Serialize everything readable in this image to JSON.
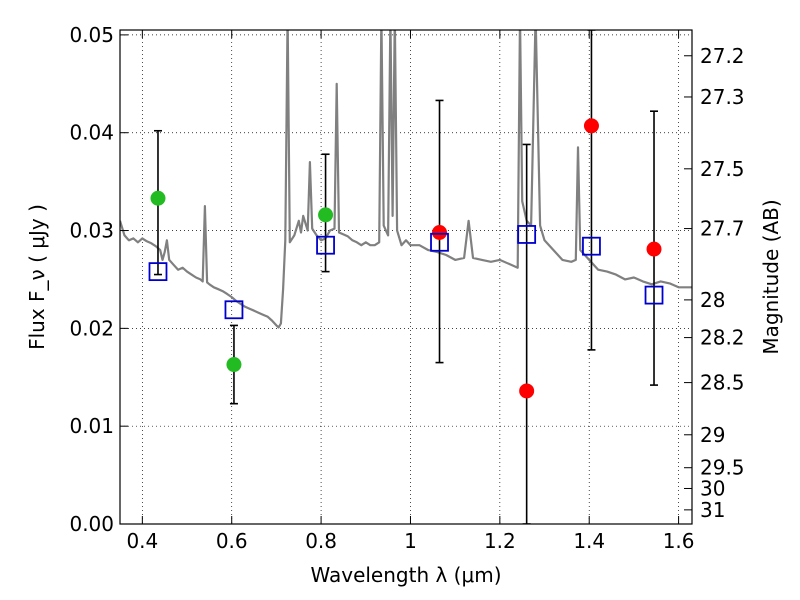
{
  "chart_data": {
    "type": "scatter",
    "title": "",
    "xlabel": "Wavelength  λ (μm)",
    "ylabel": "Flux  F_ν  ( μJy )",
    "y2label": "Magnitude (AB)",
    "xlim": [
      0.35,
      1.63
    ],
    "ylim": [
      0.0,
      0.0505
    ],
    "grid": true,
    "x_ticks": [
      0.4,
      0.6,
      0.8,
      1.0,
      1.2,
      1.4,
      1.6
    ],
    "x_tick_labels": [
      "0.4",
      "0.6",
      "0.8",
      "1",
      "1.2",
      "1.4",
      "1.6"
    ],
    "y_ticks": [
      0.0,
      0.01,
      0.02,
      0.03,
      0.04,
      0.05
    ],
    "y_tick_labels": [
      "0.00",
      "0.01",
      "0.02",
      "0.03",
      "0.04",
      "0.05"
    ],
    "y2_ticks": [
      27.2,
      27.3,
      27.5,
      27.7,
      28,
      28.2,
      28.5,
      29,
      29.5,
      30,
      31
    ],
    "y2_tick_labels": [
      "27.2",
      "27.3",
      "27.5",
      "27.7",
      "28",
      "28.2",
      "28.5",
      "29",
      "29.5",
      "30",
      "31"
    ],
    "series": [
      {
        "kind": "line",
        "color": "#808080",
        "points": [
          [
            0.35,
            0.031
          ],
          [
            0.36,
            0.0295
          ],
          [
            0.37,
            0.029
          ],
          [
            0.38,
            0.0292
          ],
          [
            0.39,
            0.0288
          ],
          [
            0.4,
            0.0292
          ],
          [
            0.41,
            0.0289
          ],
          [
            0.42,
            0.0287
          ],
          [
            0.43,
            0.0284
          ],
          [
            0.44,
            0.028
          ],
          [
            0.445,
            0.027
          ],
          [
            0.45,
            0.0278
          ],
          [
            0.455,
            0.029
          ],
          [
            0.46,
            0.027
          ],
          [
            0.47,
            0.0265
          ],
          [
            0.48,
            0.026
          ],
          [
            0.49,
            0.0262
          ],
          [
            0.5,
            0.0258
          ],
          [
            0.51,
            0.0255
          ],
          [
            0.52,
            0.0252
          ],
          [
            0.53,
            0.025
          ],
          [
            0.535,
            0.0248
          ],
          [
            0.54,
            0.0325
          ],
          [
            0.545,
            0.0247
          ],
          [
            0.55,
            0.0245
          ],
          [
            0.56,
            0.0242
          ],
          [
            0.57,
            0.024
          ],
          [
            0.58,
            0.0238
          ],
          [
            0.59,
            0.0235
          ],
          [
            0.6,
            0.0232
          ],
          [
            0.61,
            0.0228
          ],
          [
            0.62,
            0.0225
          ],
          [
            0.63,
            0.0222
          ],
          [
            0.64,
            0.022
          ],
          [
            0.65,
            0.0218
          ],
          [
            0.66,
            0.0216
          ],
          [
            0.67,
            0.0214
          ],
          [
            0.68,
            0.0212
          ],
          [
            0.69,
            0.0208
          ],
          [
            0.7,
            0.0203
          ],
          [
            0.705,
            0.0201
          ],
          [
            0.71,
            0.0205
          ],
          [
            0.715,
            0.024
          ],
          [
            0.72,
            0.029
          ],
          [
            0.725,
            0.052
          ],
          [
            0.73,
            0.0288
          ],
          [
            0.74,
            0.0295
          ],
          [
            0.75,
            0.031
          ],
          [
            0.755,
            0.0298
          ],
          [
            0.76,
            0.0315
          ],
          [
            0.77,
            0.03
          ],
          [
            0.775,
            0.037
          ],
          [
            0.78,
            0.0302
          ],
          [
            0.79,
            0.0295
          ],
          [
            0.8,
            0.029
          ],
          [
            0.81,
            0.0292
          ],
          [
            0.82,
            0.03
          ],
          [
            0.83,
            0.0302
          ],
          [
            0.835,
            0.045
          ],
          [
            0.84,
            0.0298
          ],
          [
            0.85,
            0.0296
          ],
          [
            0.86,
            0.0294
          ],
          [
            0.87,
            0.029
          ],
          [
            0.88,
            0.0288
          ],
          [
            0.89,
            0.0285
          ],
          [
            0.9,
            0.0288
          ],
          [
            0.91,
            0.0285
          ],
          [
            0.92,
            0.0285
          ],
          [
            0.93,
            0.0288
          ],
          [
            0.935,
            0.052
          ],
          [
            0.94,
            0.0305
          ],
          [
            0.95,
            0.0295
          ],
          [
            0.955,
            0.052
          ],
          [
            0.96,
            0.0315
          ],
          [
            0.965,
            0.052
          ],
          [
            0.97,
            0.03
          ],
          [
            0.98,
            0.0285
          ],
          [
            0.99,
            0.029
          ],
          [
            1.0,
            0.0285
          ],
          [
            1.02,
            0.0285
          ],
          [
            1.04,
            0.028
          ],
          [
            1.06,
            0.0278
          ],
          [
            1.08,
            0.0275
          ],
          [
            1.1,
            0.027
          ],
          [
            1.12,
            0.0272
          ],
          [
            1.13,
            0.031
          ],
          [
            1.14,
            0.0272
          ],
          [
            1.16,
            0.027
          ],
          [
            1.18,
            0.0268
          ],
          [
            1.2,
            0.027
          ],
          [
            1.22,
            0.0266
          ],
          [
            1.24,
            0.0262
          ],
          [
            1.245,
            0.052
          ],
          [
            1.25,
            0.033
          ],
          [
            1.26,
            0.031
          ],
          [
            1.27,
            0.0305
          ],
          [
            1.28,
            0.052
          ],
          [
            1.29,
            0.0305
          ],
          [
            1.3,
            0.029
          ],
          [
            1.32,
            0.028
          ],
          [
            1.34,
            0.027
          ],
          [
            1.36,
            0.0268
          ],
          [
            1.37,
            0.027
          ],
          [
            1.375,
            0.0385
          ],
          [
            1.38,
            0.028
          ],
          [
            1.39,
            0.0275
          ],
          [
            1.4,
            0.027
          ],
          [
            1.42,
            0.026
          ],
          [
            1.44,
            0.0258
          ],
          [
            1.46,
            0.0255
          ],
          [
            1.48,
            0.025
          ],
          [
            1.5,
            0.0252
          ],
          [
            1.52,
            0.0248
          ],
          [
            1.54,
            0.0245
          ],
          [
            1.56,
            0.0248
          ],
          [
            1.58,
            0.0246
          ],
          [
            1.6,
            0.0242
          ],
          [
            1.63,
            0.0242
          ]
        ]
      },
      {
        "kind": "errorbar",
        "color": "#000000",
        "points": [
          {
            "x": 0.435,
            "low": 0.0255,
            "high": 0.0402
          },
          {
            "x": 0.605,
            "low": 0.0123,
            "high": 0.0203
          },
          {
            "x": 0.81,
            "low": 0.0258,
            "high": 0.0378
          },
          {
            "x": 1.065,
            "low": 0.0165,
            "high": 0.0433
          },
          {
            "x": 1.26,
            "low": 0.0,
            "high": 0.0388
          },
          {
            "x": 1.405,
            "low": 0.0178,
            "high": 0.0505
          },
          {
            "x": 1.545,
            "low": 0.0142,
            "high": 0.0422
          }
        ]
      },
      {
        "kind": "markers",
        "marker": "circle",
        "color": "#22bb22",
        "x": [
          0.435,
          0.605,
          0.81
        ],
        "y": [
          0.0333,
          0.0163,
          0.0316
        ]
      },
      {
        "kind": "markers",
        "marker": "circle",
        "color": "#ff0000",
        "x": [
          1.065,
          1.26,
          1.405,
          1.545
        ],
        "y": [
          0.0298,
          0.0136,
          0.0407,
          0.0281
        ]
      },
      {
        "kind": "markers",
        "marker": "square",
        "color": "#0000cc",
        "x": [
          0.435,
          0.605,
          0.81,
          1.065,
          1.26,
          1.405,
          1.545
        ],
        "y": [
          0.0258,
          0.0219,
          0.0285,
          0.0288,
          0.0296,
          0.0284,
          0.0234
        ]
      }
    ]
  }
}
